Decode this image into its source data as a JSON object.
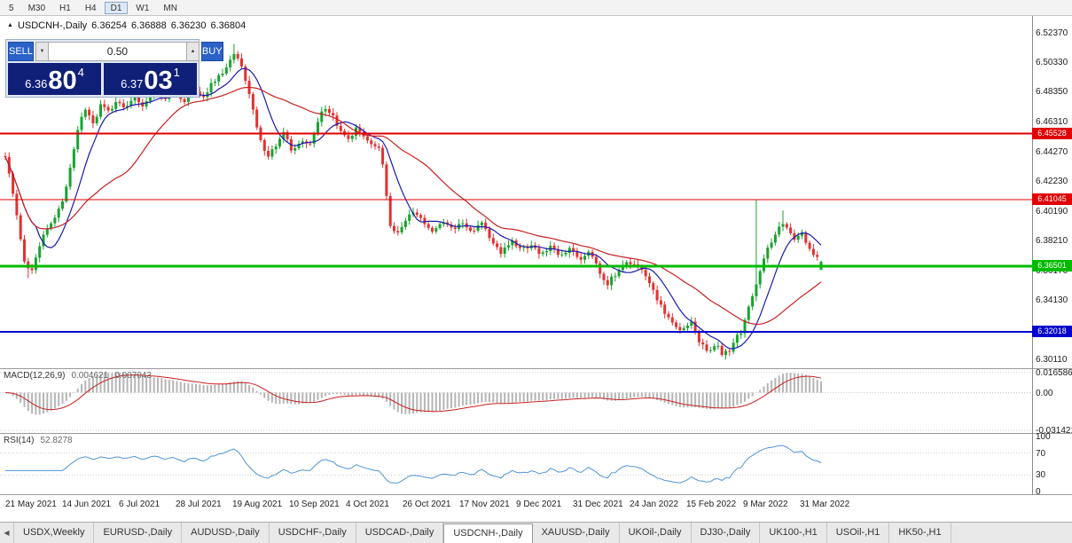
{
  "colors": {
    "up": "#17a32f",
    "down": "#e03232",
    "ma_fast": "#1a1aae",
    "ma_slow": "#c82020",
    "macd_hist": "#b5b5b5",
    "macd_signal": "#c82020",
    "rsi_line": "#4f94d4",
    "buy_sell_blue": "#2a62c8",
    "price_navy": "#101f78"
  },
  "icons": {
    "symbol_marker": "▲",
    "volume_down": "▼",
    "volume_up": "▲",
    "tab_scroll_left": "◀"
  },
  "toolbar": {
    "timeframes": [
      {
        "label": "5",
        "active": false
      },
      {
        "label": "M30",
        "active": false
      },
      {
        "label": "H1",
        "active": false
      },
      {
        "label": "H4",
        "active": false
      },
      {
        "label": "D1",
        "active": true
      },
      {
        "label": "W1",
        "active": false
      },
      {
        "label": "MN",
        "active": false
      }
    ]
  },
  "chart_header": {
    "symbol": "USDCNH-,Daily",
    "open": "6.36254",
    "high": "6.36888",
    "low": "6.36230",
    "close": "6.36804"
  },
  "trade_panel": {
    "sell_label": "SELL",
    "buy_label": "BUY",
    "volume": "0.50",
    "sell_price_main": "6.36",
    "sell_price_big": "80",
    "sell_price_sup": "4",
    "buy_price_main": "6.37",
    "buy_price_big": "03",
    "buy_price_sup": "1"
  },
  "price_axis_ticks": [
    "6.52370",
    "6.50330",
    "6.48350",
    "6.46310",
    "6.44270",
    "6.42230",
    "6.40190",
    "6.38210",
    "6.36170",
    "6.34130",
    "6.32090",
    "6.30110"
  ],
  "levels": [
    {
      "price": 6.45528,
      "label": "6.45528",
      "color": "#e00000",
      "thickness": 2
    },
    {
      "price": 6.41045,
      "label": "6.41045",
      "color": "#e00000",
      "thickness": 1
    },
    {
      "price": 6.36501,
      "label": "6.36501",
      "color": "#00bb00",
      "thickness": 3
    },
    {
      "price": 6.32018,
      "label": "6.32018",
      "color": "#0000cc",
      "thickness": 2
    }
  ],
  "macd_panel": {
    "name": "MACD(12,26,9)",
    "value1": "0.004621",
    "value2": "0.007043",
    "axis_max": 0.016586,
    "axis_min": -0.031421,
    "axis_labels": [
      "0.016586",
      "0.00",
      "-0.031421"
    ]
  },
  "rsi_panel": {
    "name": "RSI(14)",
    "value": "52.8278",
    "axis_labels": [
      "100",
      "70",
      "30",
      "0"
    ],
    "guide_levels": [
      70,
      30
    ]
  },
  "time_axis": [
    "21 May 2021",
    "14 Jun 2021",
    "6 Jul 2021",
    "28 Jul 2021",
    "19 Aug 2021",
    "10 Sep 2021",
    "4 Oct 2021",
    "26 Oct 2021",
    "17 Nov 2021",
    "9 Dec 2021",
    "31 Dec 2021",
    "24 Jan 2022",
    "15 Feb 2022",
    "9 Mar 2022",
    "31 Mar 2022"
  ],
  "tabs": [
    {
      "label": "USDX,Weekly",
      "active": false
    },
    {
      "label": "EURUSD-,Daily",
      "active": false
    },
    {
      "label": "AUDUSD-,Daily",
      "active": false
    },
    {
      "label": "USDCHF-,Daily",
      "active": false
    },
    {
      "label": "USDCAD-,Daily",
      "active": false
    },
    {
      "label": "USDCNH-,Daily",
      "active": true
    },
    {
      "label": "XAUUSD-,Daily",
      "active": false
    },
    {
      "label": "UKOil-,Daily",
      "active": false
    },
    {
      "label": "DJ30-,Daily",
      "active": false
    },
    {
      "label": "UK100-,H1",
      "active": false
    },
    {
      "label": "USOil-,H1",
      "active": false
    },
    {
      "label": "HK50-,H1",
      "active": false
    }
  ],
  "chart_data": {
    "type": "candlestick",
    "symbol": "USDCNH",
    "timeframe": "Daily",
    "visible_range": {
      "price_min": 6.2955,
      "price_max": 6.5355,
      "date_start": "21 May 2021",
      "date_end": "31 Mar 2022"
    },
    "ohlc_last": {
      "open": 6.36254,
      "high": 6.36888,
      "low": 6.3623,
      "close": 6.36804
    },
    "candle_count": 215,
    "jitter": 0.0032,
    "wick": 0.0045,
    "close_waypoints": [
      [
        0.0,
        6.44
      ],
      [
        0.008,
        6.418
      ],
      [
        0.016,
        6.392
      ],
      [
        0.024,
        6.366
      ],
      [
        0.032,
        6.362
      ],
      [
        0.042,
        6.38
      ],
      [
        0.052,
        6.392
      ],
      [
        0.062,
        6.398
      ],
      [
        0.072,
        6.412
      ],
      [
        0.082,
        6.438
      ],
      [
        0.092,
        6.466
      ],
      [
        0.1,
        6.474
      ],
      [
        0.108,
        6.46
      ],
      [
        0.118,
        6.477
      ],
      [
        0.128,
        6.47
      ],
      [
        0.138,
        6.478
      ],
      [
        0.148,
        6.472
      ],
      [
        0.158,
        6.482
      ],
      [
        0.17,
        6.474
      ],
      [
        0.182,
        6.486
      ],
      [
        0.194,
        6.478
      ],
      [
        0.206,
        6.484
      ],
      [
        0.218,
        6.476
      ],
      [
        0.23,
        6.486
      ],
      [
        0.242,
        6.48
      ],
      [
        0.254,
        6.49
      ],
      [
        0.266,
        6.496
      ],
      [
        0.282,
        6.51
      ],
      [
        0.292,
        6.498
      ],
      [
        0.302,
        6.474
      ],
      [
        0.312,
        6.452
      ],
      [
        0.322,
        6.44
      ],
      [
        0.332,
        6.448
      ],
      [
        0.342,
        6.456
      ],
      [
        0.352,
        6.442
      ],
      [
        0.362,
        6.45
      ],
      [
        0.372,
        6.446
      ],
      [
        0.382,
        6.462
      ],
      [
        0.392,
        6.474
      ],
      [
        0.402,
        6.466
      ],
      [
        0.412,
        6.456
      ],
      [
        0.422,
        6.452
      ],
      [
        0.432,
        6.46
      ],
      [
        0.442,
        6.452
      ],
      [
        0.452,
        6.448
      ],
      [
        0.46,
        6.444
      ],
      [
        0.466,
        6.42
      ],
      [
        0.472,
        6.392
      ],
      [
        0.48,
        6.386
      ],
      [
        0.49,
        6.396
      ],
      [
        0.5,
        6.402
      ],
      [
        0.512,
        6.396
      ],
      [
        0.524,
        6.388
      ],
      [
        0.536,
        6.396
      ],
      [
        0.548,
        6.39
      ],
      [
        0.56,
        6.396
      ],
      [
        0.572,
        6.388
      ],
      [
        0.584,
        6.396
      ],
      [
        0.596,
        6.382
      ],
      [
        0.608,
        6.374
      ],
      [
        0.62,
        6.382
      ],
      [
        0.632,
        6.376
      ],
      [
        0.644,
        6.38
      ],
      [
        0.656,
        6.374
      ],
      [
        0.668,
        6.378
      ],
      [
        0.68,
        6.372
      ],
      [
        0.692,
        6.376
      ],
      [
        0.704,
        6.37
      ],
      [
        0.716,
        6.376
      ],
      [
        0.728,
        6.362
      ],
      [
        0.738,
        6.353
      ],
      [
        0.748,
        6.36
      ],
      [
        0.758,
        6.366
      ],
      [
        0.768,
        6.368
      ],
      [
        0.78,
        6.362
      ],
      [
        0.792,
        6.35
      ],
      [
        0.804,
        6.338
      ],
      [
        0.816,
        6.327
      ],
      [
        0.828,
        6.32
      ],
      [
        0.84,
        6.328
      ],
      [
        0.852,
        6.312
      ],
      [
        0.862,
        6.306
      ],
      [
        0.872,
        6.312
      ],
      [
        0.879,
        6.304
      ],
      [
        0.888,
        6.308
      ],
      [
        0.896,
        6.316
      ],
      [
        0.904,
        6.322
      ],
      [
        0.912,
        6.338
      ],
      [
        0.921,
        6.355
      ],
      [
        0.928,
        6.368
      ],
      [
        0.936,
        6.378
      ],
      [
        0.944,
        6.386
      ],
      [
        0.952,
        6.396
      ],
      [
        0.96,
        6.39
      ],
      [
        0.968,
        6.382
      ],
      [
        0.976,
        6.388
      ],
      [
        0.984,
        6.378
      ],
      [
        0.992,
        6.372
      ],
      [
        1.0,
        6.368
      ]
    ],
    "spikes": [
      {
        "f": 0.921,
        "high_extra": 0.055
      },
      {
        "f": 0.282,
        "high_extra": 0.005
      },
      {
        "f": 0.027,
        "low_extra": 0.005
      },
      {
        "f": 0.952,
        "high_extra": 0.008
      }
    ],
    "overlays": {
      "ma_fast_period": 9,
      "ma_slow_period": 30
    },
    "indicators": {
      "macd": [
        12,
        26,
        9
      ],
      "rsi": 14
    }
  }
}
